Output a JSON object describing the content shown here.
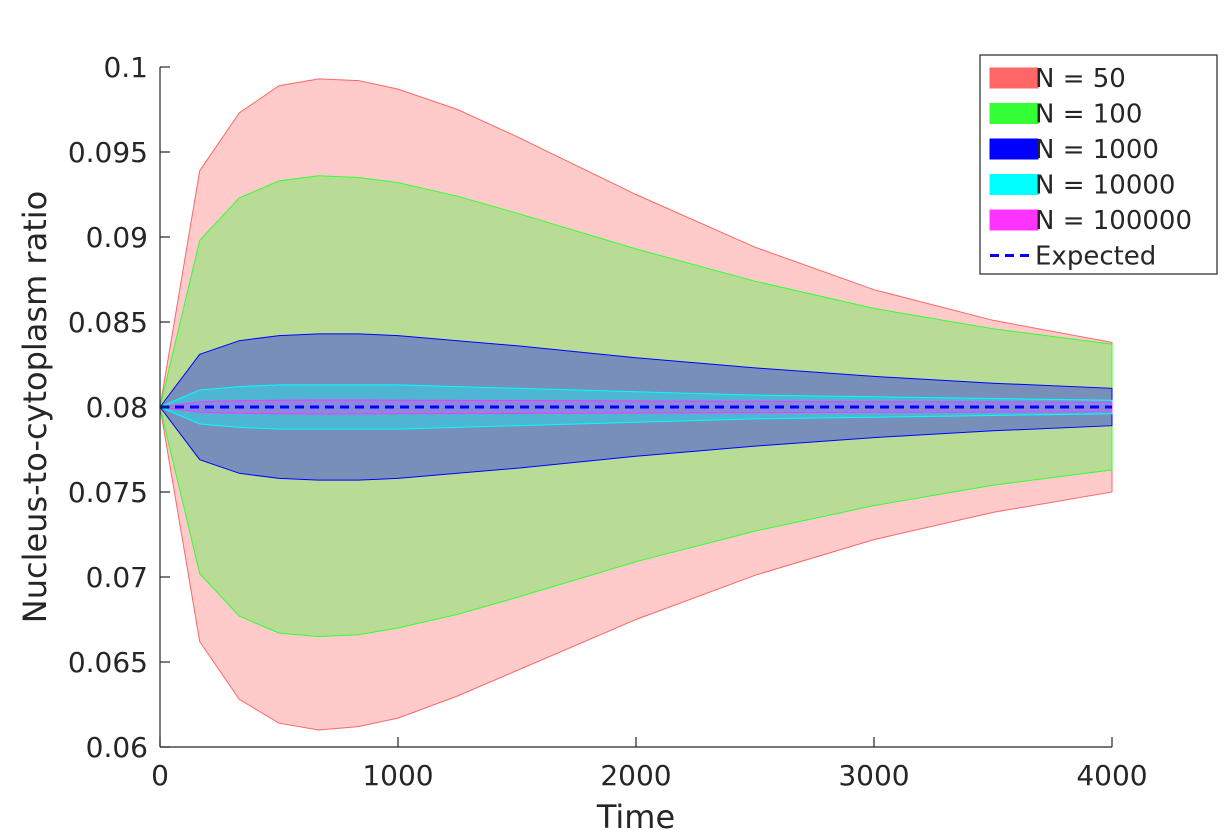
{
  "chart_data": {
    "type": "area",
    "title": "",
    "xlabel": "Time",
    "ylabel": "Nucleus-to-cytoplasm ratio",
    "xlim": [
      0,
      4000
    ],
    "ylim": [
      0.06,
      0.1
    ],
    "xticks": [
      0,
      1000,
      2000,
      3000,
      4000
    ],
    "xtick_labels": [
      "0",
      "1000",
      "2000",
      "3000",
      "4000"
    ],
    "yticks": [
      0.06,
      0.065,
      0.07,
      0.075,
      0.08,
      0.085,
      0.09,
      0.095,
      0.1
    ],
    "ytick_labels": [
      "0.06",
      "0.065",
      "0.07",
      "0.075",
      "0.08",
      "0.085",
      "0.09",
      "0.095",
      "0.1"
    ],
    "grid": false,
    "legend_position": "top-right",
    "x": [
      0,
      167,
      333,
      500,
      667,
      833,
      1000,
      1250,
      1500,
      2000,
      2500,
      3000,
      3500,
      4000
    ],
    "series": [
      {
        "name": "N = 50",
        "fill_color": "#ff6666",
        "edge_color": "#ff6666",
        "upper": [
          0.08,
          0.0939,
          0.0973,
          0.0989,
          0.0993,
          0.0992,
          0.0987,
          0.0975,
          0.0959,
          0.0925,
          0.0894,
          0.0869,
          0.0851,
          0.0838
        ],
        "lower": [
          0.08,
          0.0662,
          0.0628,
          0.0614,
          0.061,
          0.0612,
          0.0617,
          0.063,
          0.0645,
          0.0675,
          0.0701,
          0.0722,
          0.0738,
          0.075
        ]
      },
      {
        "name": "N = 100",
        "fill_color": "#33ff33",
        "edge_color": "#33ff33",
        "upper": [
          0.08,
          0.0898,
          0.0923,
          0.0933,
          0.0936,
          0.0935,
          0.0932,
          0.0924,
          0.0914,
          0.0893,
          0.0874,
          0.0858,
          0.0846,
          0.0837
        ],
        "lower": [
          0.08,
          0.0702,
          0.0677,
          0.0667,
          0.0665,
          0.0666,
          0.067,
          0.0678,
          0.0688,
          0.0709,
          0.0727,
          0.0742,
          0.0754,
          0.0763
        ]
      },
      {
        "name": "N = 1000",
        "fill_color": "#0000ff",
        "edge_color": "#0000ff",
        "upper": [
          0.08,
          0.0831,
          0.0839,
          0.0842,
          0.0843,
          0.0843,
          0.0842,
          0.0839,
          0.0836,
          0.0829,
          0.0823,
          0.0818,
          0.0814,
          0.0811
        ],
        "lower": [
          0.08,
          0.0769,
          0.0761,
          0.0758,
          0.0757,
          0.0757,
          0.0758,
          0.0761,
          0.0764,
          0.0771,
          0.0777,
          0.0782,
          0.0786,
          0.0789
        ]
      },
      {
        "name": "N = 10000",
        "fill_color": "#00ffff",
        "edge_color": "#00ffff",
        "upper": [
          0.08,
          0.081,
          0.0812,
          0.0813,
          0.0813,
          0.0813,
          0.0813,
          0.0812,
          0.0811,
          0.0809,
          0.0807,
          0.0806,
          0.0805,
          0.0804
        ],
        "lower": [
          0.08,
          0.079,
          0.0788,
          0.0787,
          0.0787,
          0.0787,
          0.0787,
          0.0788,
          0.0789,
          0.0791,
          0.0793,
          0.0794,
          0.0795,
          0.0796
        ]
      },
      {
        "name": "N = 100000",
        "fill_color": "#ff33ff",
        "edge_color": "#ff33ff",
        "upper": [
          0.08,
          0.08031,
          0.08037,
          0.0804,
          0.08041,
          0.08041,
          0.0804,
          0.08039,
          0.08038,
          0.08035,
          0.08033,
          0.08031,
          0.0803,
          0.08029
        ],
        "lower": [
          0.08,
          0.07969,
          0.07963,
          0.0796,
          0.07959,
          0.07959,
          0.0796,
          0.07961,
          0.07962,
          0.07965,
          0.07967,
          0.07969,
          0.0797,
          0.07971
        ]
      }
    ],
    "expected": {
      "name": "Expected",
      "color": "#0000ff",
      "y": 0.08
    }
  }
}
